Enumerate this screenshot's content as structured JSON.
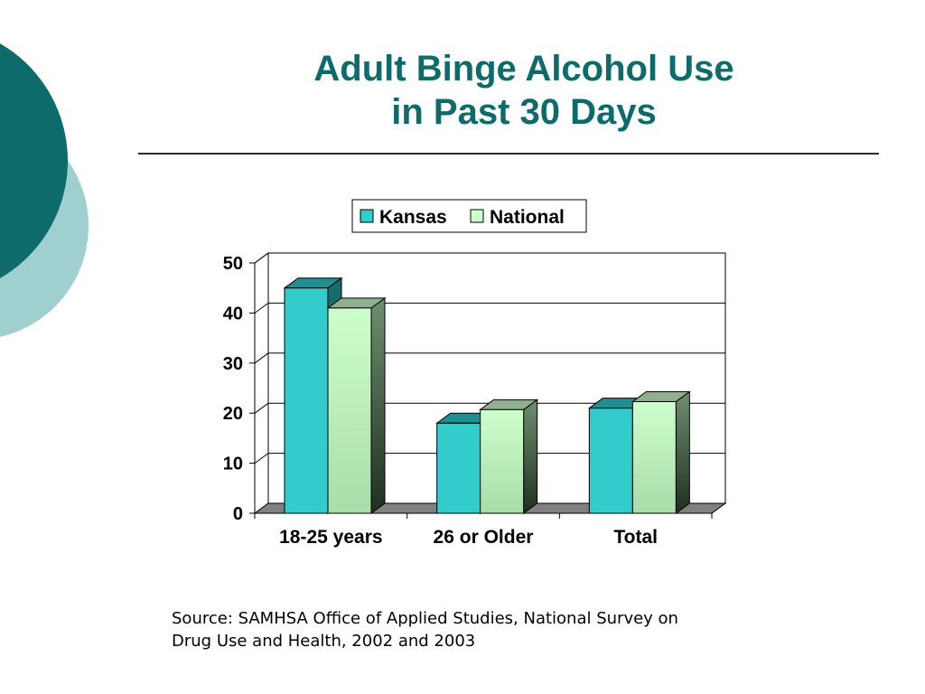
{
  "colors": {
    "title": "#0e6b6b",
    "deco_dark": "#0e6b6b",
    "deco_light": "#9fcfcf",
    "kansas_front": "#33cccc",
    "kansas_top": "#1f8f8f",
    "kansas_side": "#1a6b6b",
    "national_front": "#ccffcc",
    "national_top": "#8fb08f",
    "national_side": "#5a7a5a",
    "floor": "#808080"
  },
  "slide": {
    "title_line1": "Adult Binge Alcohol Use",
    "title_line2": "in Past 30 Days",
    "source_line1": "Source:  SAMHSA Office of Applied Studies, National Survey on",
    "source_line2": "Drug Use and Health, 2002 and 2003"
  },
  "chart_data": {
    "type": "bar",
    "categories": [
      "18-25 years",
      "26 or Older",
      "Total"
    ],
    "series": [
      {
        "name": "Kansas",
        "values": [
          45,
          18,
          21
        ]
      },
      {
        "name": "National",
        "values": [
          41,
          20.7,
          22.3
        ]
      }
    ],
    "ylim": [
      0,
      50
    ],
    "yticks": [
      0,
      10,
      20,
      30,
      40,
      50
    ],
    "grid": true,
    "legend": "top",
    "style": "3d-column"
  }
}
